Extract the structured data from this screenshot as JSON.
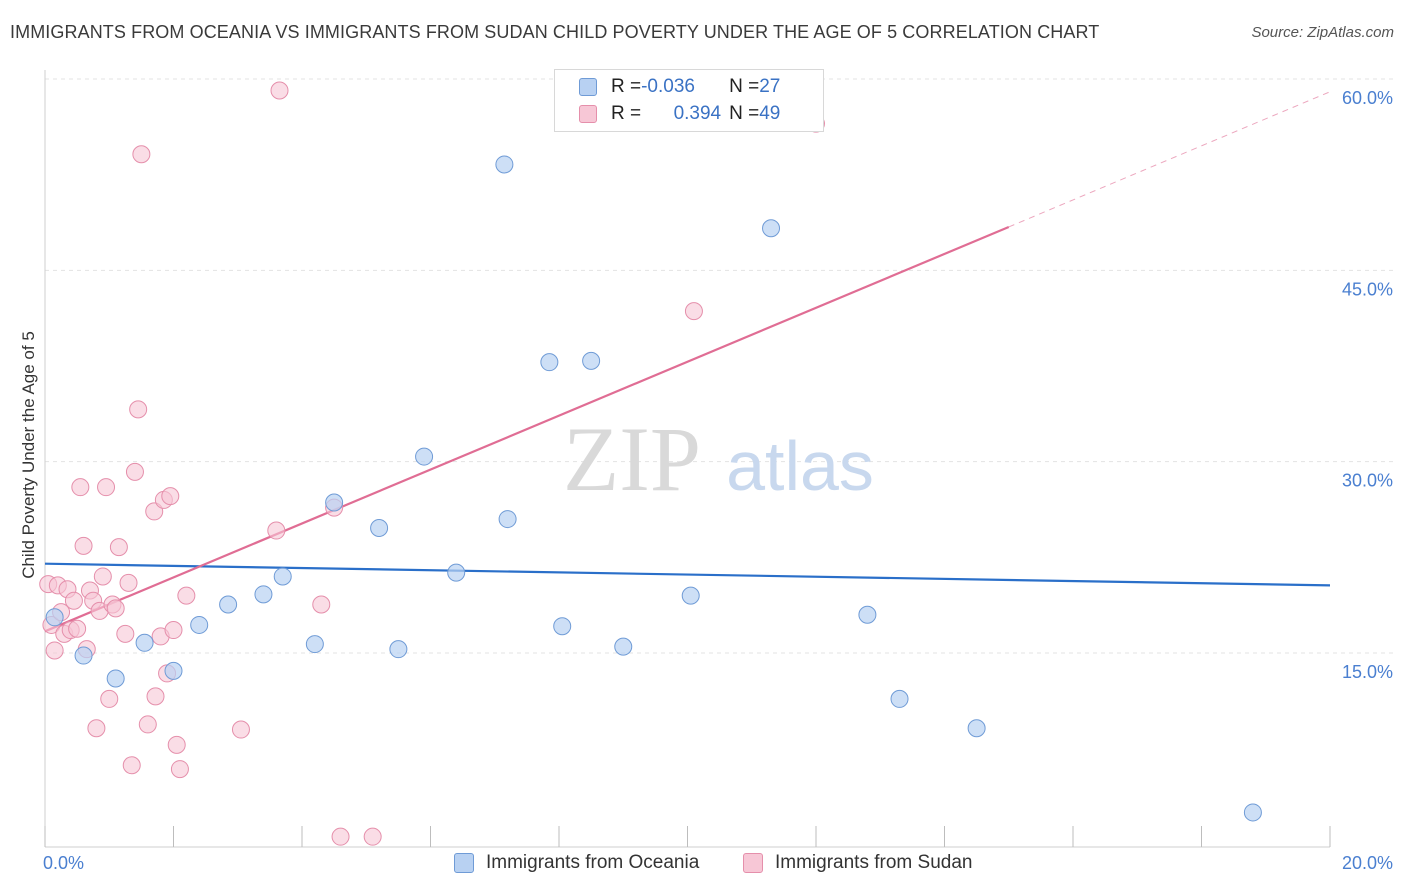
{
  "title": "IMMIGRANTS FROM OCEANIA VS IMMIGRANTS FROM SUDAN CHILD POVERTY UNDER THE AGE OF 5 CORRELATION CHART",
  "source": "Source: ZipAtlas.com",
  "watermark": {
    "zip": "ZIP",
    "atlas": "atlas"
  },
  "legend": {
    "oceania": {
      "r_label": "R = ",
      "r_value": "-0.036",
      "n_label": "N = ",
      "n_value": "27"
    },
    "sudan": {
      "r_label": "R = ",
      "r_value": "0.394",
      "n_label": "N = ",
      "n_value": "49"
    }
  },
  "colors": {
    "oceania_fill": "#b8d1f2",
    "oceania_stroke": "#6f9bd6",
    "oceania_line": "#2a6fc9",
    "sudan_fill": "#f7c7d6",
    "sudan_stroke": "#e58fab",
    "sudan_line": "#e06d94",
    "tick_text": "#4a7fd0",
    "grid": "#e3e3e3"
  },
  "chart_data": {
    "type": "scatter",
    "title": "IMMIGRANTS FROM OCEANIA VS IMMIGRANTS FROM SUDAN CHILD POVERTY UNDER THE AGE OF 5 CORRELATION CHART",
    "xlabel": "",
    "ylabel": "Child Poverty Under the Age of 5",
    "xlim": [
      0,
      20
    ],
    "ylim": [
      0,
      62
    ],
    "x_tick_labels": [
      "0.0%",
      "20.0%"
    ],
    "y_ticks": [
      15,
      30,
      45,
      60
    ],
    "y_tick_labels": [
      "15.0%",
      "30.0%",
      "45.0%",
      "60.0%"
    ],
    "grid": true,
    "legend_position": "top-center",
    "series": [
      {
        "name": "Immigrants from Oceania",
        "points": [
          [
            0.15,
            17.8
          ],
          [
            0.6,
            14.8
          ],
          [
            1.1,
            13.0
          ],
          [
            1.55,
            15.8
          ],
          [
            2.0,
            13.6
          ],
          [
            2.4,
            17.2
          ],
          [
            2.85,
            18.8
          ],
          [
            3.4,
            19.6
          ],
          [
            3.7,
            21.0
          ],
          [
            4.2,
            15.7
          ],
          [
            4.5,
            26.8
          ],
          [
            5.2,
            24.8
          ],
          [
            5.5,
            15.3
          ],
          [
            5.9,
            30.4
          ],
          [
            6.4,
            21.3
          ],
          [
            7.15,
            53.3
          ],
          [
            7.2,
            25.5
          ],
          [
            7.85,
            37.8
          ],
          [
            8.05,
            17.1
          ],
          [
            8.5,
            37.9
          ],
          [
            9.0,
            15.5
          ],
          [
            10.05,
            19.5
          ],
          [
            11.3,
            48.3
          ],
          [
            12.8,
            18.0
          ],
          [
            13.3,
            11.4
          ],
          [
            14.5,
            9.1
          ],
          [
            18.8,
            2.5
          ]
        ],
        "trend": {
          "x": [
            0,
            20
          ],
          "y": [
            22.0,
            20.3
          ]
        }
      },
      {
        "name": "Immigrants from Sudan",
        "points": [
          [
            0.05,
            20.4
          ],
          [
            0.1,
            17.2
          ],
          [
            0.15,
            15.2
          ],
          [
            0.2,
            20.3
          ],
          [
            0.25,
            18.2
          ],
          [
            0.3,
            16.5
          ],
          [
            0.35,
            20.0
          ],
          [
            0.4,
            16.8
          ],
          [
            0.45,
            19.1
          ],
          [
            0.5,
            16.9
          ],
          [
            0.55,
            28.0
          ],
          [
            0.6,
            23.4
          ],
          [
            0.65,
            15.3
          ],
          [
            0.7,
            19.9
          ],
          [
            0.75,
            19.1
          ],
          [
            0.8,
            9.1
          ],
          [
            0.85,
            18.3
          ],
          [
            0.9,
            21.0
          ],
          [
            0.95,
            28.0
          ],
          [
            1.0,
            11.4
          ],
          [
            1.05,
            18.8
          ],
          [
            1.1,
            18.5
          ],
          [
            1.15,
            23.3
          ],
          [
            1.25,
            16.5
          ],
          [
            1.3,
            20.5
          ],
          [
            1.35,
            6.2
          ],
          [
            1.4,
            29.2
          ],
          [
            1.45,
            34.1
          ],
          [
            1.5,
            54.1
          ],
          [
            1.6,
            9.4
          ],
          [
            1.7,
            26.1
          ],
          [
            1.72,
            11.6
          ],
          [
            1.8,
            16.3
          ],
          [
            1.85,
            27.0
          ],
          [
            1.9,
            13.4
          ],
          [
            1.95,
            27.3
          ],
          [
            2.0,
            16.8
          ],
          [
            2.05,
            7.8
          ],
          [
            2.1,
            5.9
          ],
          [
            2.2,
            19.5
          ],
          [
            3.05,
            9.0
          ],
          [
            3.6,
            24.6
          ],
          [
            3.65,
            59.1
          ],
          [
            4.3,
            18.8
          ],
          [
            4.5,
            26.4
          ],
          [
            4.6,
            0.6
          ],
          [
            5.1,
            0.6
          ],
          [
            10.1,
            41.8
          ],
          [
            12.0,
            56.5
          ]
        ],
        "trend": {
          "x": [
            0,
            15.0
          ],
          "y": [
            16.7,
            48.4
          ]
        },
        "trend_dashed": {
          "x": [
            15.0,
            20
          ],
          "y": [
            48.4,
            59.0
          ]
        }
      }
    ]
  }
}
